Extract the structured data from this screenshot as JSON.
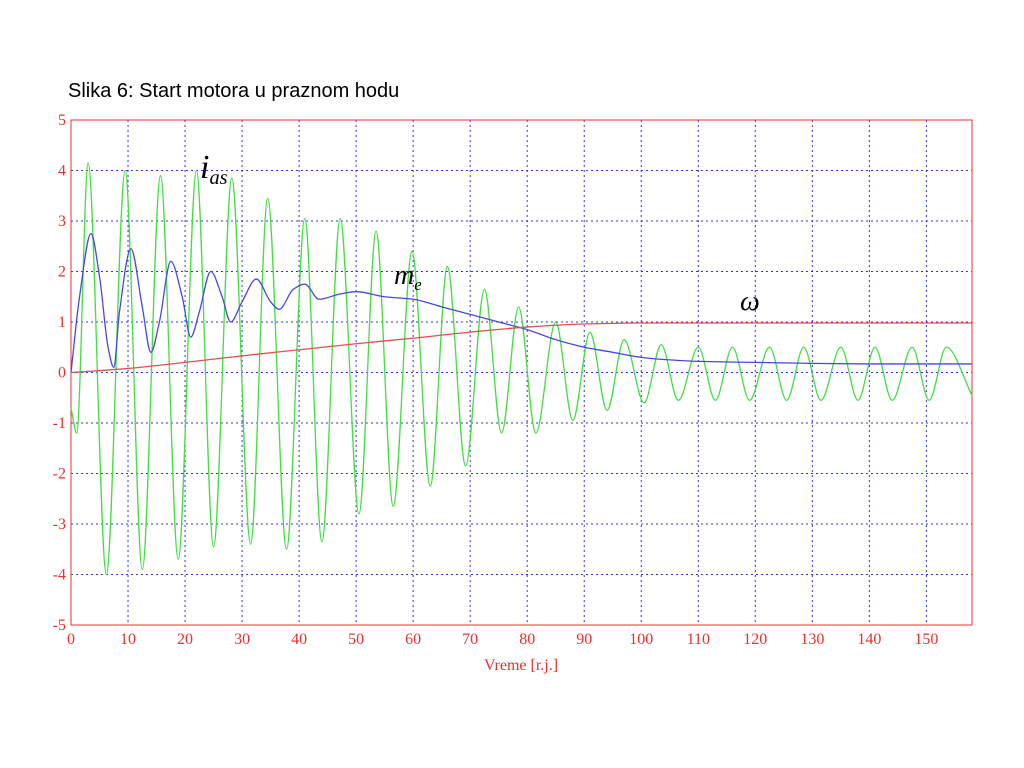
{
  "chart_data": {
    "type": "line",
    "title": "Slika 6: Start motora u praznom hodu",
    "xlabel": "Vreme [r.j.]",
    "xlim": [
      0,
      158
    ],
    "ylim": [
      -5,
      5
    ],
    "xticks": [
      0,
      10,
      20,
      30,
      40,
      50,
      60,
      70,
      80,
      90,
      100,
      110,
      120,
      130,
      140,
      150
    ],
    "yticks": [
      -5,
      -4,
      -3,
      -2,
      -1,
      0,
      1,
      2,
      3,
      4,
      5
    ],
    "grid": true,
    "axis_color": "#e83030",
    "grid_color": "#3333dd",
    "annotations": [
      {
        "text": "i",
        "sub": "as"
      },
      {
        "text": "m",
        "sub": "e"
      },
      {
        "text": "ω"
      }
    ],
    "series": [
      {
        "color": "#44dd44",
        "x": [
          0,
          1,
          3,
          6.2,
          9.5,
          12.5,
          15.7,
          18.8,
          22,
          25,
          28.2,
          31.5,
          34.5,
          37.8,
          41,
          44,
          47.2,
          50.5,
          53.5,
          56.5,
          59.8,
          63,
          66,
          69.2,
          72.5,
          75.5,
          78.5,
          81.5,
          85,
          88,
          91,
          94,
          97,
          100.5,
          103.5,
          106.5,
          110,
          113,
          116,
          119,
          122.5,
          125.5,
          128.5,
          131.5,
          135,
          138,
          141,
          144,
          147.5,
          150.5,
          153.5,
          158
        ],
        "values": [
          -0.7,
          -1.2,
          4.15,
          -4.0,
          4.0,
          -3.9,
          3.9,
          -3.7,
          4.0,
          -3.45,
          3.85,
          -3.4,
          3.45,
          -3.5,
          3.05,
          -3.35,
          3.05,
          -2.8,
          2.8,
          -2.65,
          2.4,
          -2.25,
          2.1,
          -1.85,
          1.65,
          -1.2,
          1.3,
          -1.2,
          1.0,
          -0.95,
          0.8,
          -0.75,
          0.65,
          -0.6,
          0.55,
          -0.55,
          0.5,
          -0.55,
          0.5,
          -0.55,
          0.5,
          -0.55,
          0.5,
          -0.55,
          0.5,
          -0.55,
          0.5,
          -0.55,
          0.5,
          -0.55,
          0.5,
          -0.45
        ]
      },
      {
        "color": "#4848e0",
        "x": [
          0,
          1.5,
          3.5,
          5,
          6.5,
          7.5,
          8.5,
          10.5,
          12.5,
          14,
          15.5,
          17.5,
          19.5,
          21,
          22.5,
          24.5,
          26.5,
          28,
          30,
          32.5,
          35,
          36.5,
          39,
          41,
          43.5,
          47,
          50,
          55,
          60,
          65,
          70,
          75,
          80,
          85,
          90,
          95,
          100,
          105,
          110,
          120,
          130,
          140,
          158
        ],
        "values": [
          0,
          1.5,
          2.75,
          1.9,
          0.5,
          0.1,
          1.2,
          2.45,
          1.3,
          0.4,
          1.0,
          2.2,
          1.5,
          0.7,
          1.2,
          2.0,
          1.5,
          1.0,
          1.4,
          1.85,
          1.4,
          1.25,
          1.65,
          1.75,
          1.45,
          1.55,
          1.6,
          1.5,
          1.45,
          1.3,
          1.15,
          1.0,
          0.85,
          0.65,
          0.5,
          0.4,
          0.3,
          0.25,
          0.22,
          0.2,
          0.18,
          0.17,
          0.17
        ]
      },
      {
        "color": "#e05050",
        "x": [
          0,
          10,
          20,
          30,
          40,
          50,
          60,
          70,
          80,
          90,
          100,
          158
        ],
        "values": [
          0,
          0.08,
          0.2,
          0.33,
          0.45,
          0.57,
          0.68,
          0.8,
          0.9,
          0.96,
          0.98,
          0.98
        ]
      }
    ]
  }
}
